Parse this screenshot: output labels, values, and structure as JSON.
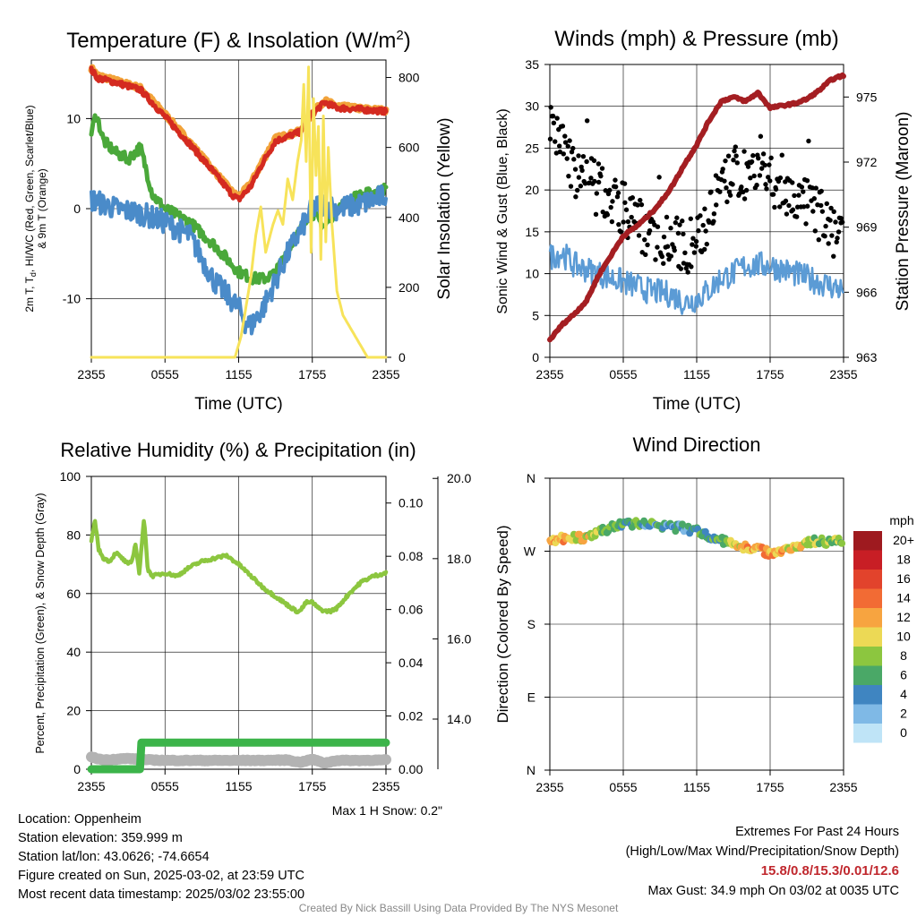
{
  "colors": {
    "temp": "#d42a20",
    "nine_m_temp": "#f2a33a",
    "dewpoint": "#4aa83a",
    "hiwc": "#4a8bc9",
    "insolation": "#f7e35a",
    "rh": "#8cc63f",
    "precip": "#3cb44a",
    "snow": "#b3b3b3",
    "wind": "#5b9bd5",
    "gust": "#000000",
    "pressure": "#a41e22"
  },
  "chart_data": [
    {
      "id": "temperature",
      "type": "line",
      "title": "Temperature (F) & Insolation (W/m",
      "title_sup": "2",
      "title_end": ")",
      "xlabel": "Time (UTC)",
      "ylabel_line1": "2m T, T",
      "ylabel_sub": "d",
      "ylabel_line1_end": ", HI/WC (Red, Green, Scarlet/Blue)",
      "ylabel_line2": "& 9m T (Orange)",
      "y2label": "Solar Insolation (Yellow)",
      "xticks": [
        "2355",
        "0555",
        "1155",
        "1755",
        "2355"
      ],
      "x_hours": [
        0,
        6,
        12,
        18,
        24
      ],
      "ylim": [
        -16.5,
        16.5
      ],
      "yticks": [
        -10,
        0,
        10
      ],
      "y2lim": [
        0,
        850
      ],
      "y2ticks": [
        0,
        200,
        400,
        600,
        800
      ],
      "series": [
        {
          "name": "9m Temperature",
          "axis": "left",
          "color_key": "nine_m_temp",
          "width": 7,
          "noise": 0.25,
          "x": [
            0,
            0.5,
            2,
            4,
            6,
            8,
            10,
            11.5,
            12,
            13,
            14,
            15,
            16,
            17,
            18,
            19,
            20,
            22,
            24
          ],
          "values": [
            15.6,
            14.8,
            14.2,
            13.4,
            10.5,
            7.4,
            4.2,
            1.8,
            1.3,
            2.8,
            5.4,
            7.8,
            8.2,
            8.6,
            10.6,
            12.0,
            11.4,
            11.1,
            10.9
          ]
        },
        {
          "name": "2m Temperature",
          "axis": "left",
          "color_key": "temp",
          "width": 5,
          "noise": 0.3,
          "x": [
            0,
            0.5,
            2,
            4,
            6,
            8,
            10,
            11.5,
            12,
            13,
            14,
            15,
            16,
            17,
            18,
            19,
            20,
            22,
            24
          ],
          "values": [
            15.4,
            14.5,
            14.0,
            13.2,
            10.2,
            7.2,
            4.0,
            1.5,
            1.0,
            2.5,
            5.2,
            7.5,
            8.0,
            8.5,
            10.5,
            11.8,
            11.2,
            11.0,
            10.8
          ]
        },
        {
          "name": "Dewpoint",
          "axis": "left",
          "color_key": "dewpoint",
          "width": 5,
          "noise": 0.6,
          "x": [
            0,
            0.4,
            1,
            2,
            3,
            4,
            5,
            6,
            8,
            10,
            12,
            13,
            14,
            15,
            16,
            17,
            17.5,
            18,
            19,
            20,
            21,
            22,
            23,
            24
          ],
          "values": [
            8.5,
            10.5,
            7.5,
            6.2,
            5.5,
            6.8,
            1.5,
            0.0,
            -1.5,
            -4.0,
            -7.0,
            -7.7,
            -7.8,
            -7.2,
            -4.5,
            -2.5,
            -1.0,
            -0.5,
            -2.0,
            0.0,
            1.0,
            1.5,
            1.8,
            2.2
          ]
        },
        {
          "name": "Wind Chill",
          "axis": "left",
          "color_key": "hiwc",
          "width": 4,
          "noise": 1.3,
          "x": [
            0,
            2,
            4,
            6,
            8,
            9,
            10,
            11,
            12,
            12.5,
            13,
            13.5,
            14,
            15,
            16,
            17,
            18,
            19,
            20,
            22,
            24
          ],
          "values": [
            1.0,
            0.0,
            -0.5,
            -1.5,
            -3.0,
            -5.5,
            -8.0,
            -9.5,
            -11.0,
            -12.5,
            -13.0,
            -12.0,
            -11.0,
            -8.0,
            -5.0,
            -2.5,
            0.0,
            0.5,
            0.0,
            0.5,
            1.5
          ]
        },
        {
          "name": "Solar Insolation",
          "axis": "right",
          "color_key": "insolation",
          "width": 3,
          "noise": 0,
          "x": [
            0,
            11.7,
            12.2,
            13,
            13.4,
            13.8,
            14.2,
            14.8,
            15.2,
            15.6,
            16,
            16.4,
            16.8,
            17.1,
            17.3,
            17.5,
            17.7,
            17.9,
            18.1,
            18.3,
            18.5,
            18.7,
            18.9,
            19.1,
            19.3,
            19.6,
            20,
            20.5,
            21,
            21.5,
            22,
            22.5,
            23,
            24
          ],
          "values": [
            0,
            0,
            60,
            230,
            350,
            430,
            300,
            380,
            420,
            380,
            510,
            450,
            560,
            620,
            780,
            560,
            830,
            300,
            740,
            520,
            660,
            280,
            690,
            330,
            600,
            380,
            190,
            120,
            90,
            60,
            30,
            0,
            0,
            0
          ]
        }
      ]
    },
    {
      "id": "winds",
      "type": "scatter",
      "title": "Winds (mph) & Pressure (mb)",
      "xlabel": "Time (UTC)",
      "ylabel": "Sonic Wind & Gust (Blue, Black)",
      "y2label": "Station Pressure (Maroon)",
      "xticks": [
        "2355",
        "0555",
        "1155",
        "1755",
        "2355"
      ],
      "x_hours": [
        0,
        6,
        12,
        18,
        24
      ],
      "ylim": [
        0,
        35
      ],
      "yticks": [
        0,
        5,
        10,
        15,
        20,
        25,
        30,
        35
      ],
      "y2lim": [
        963,
        976.5
      ],
      "y2ticks": [
        963,
        966,
        969,
        972,
        975
      ],
      "gust_trend": {
        "x": [
          0,
          1,
          2,
          4,
          6,
          8,
          10,
          11,
          12,
          13,
          14,
          15,
          16,
          18,
          20,
          22,
          24
        ],
        "values": [
          27,
          26,
          22,
          20,
          18,
          15,
          14,
          13,
          14,
          17,
          20,
          22,
          22,
          21,
          19,
          17,
          14
        ],
        "spread": 3.2
      },
      "wind": {
        "x": [
          0,
          1,
          2,
          4,
          6,
          8,
          10,
          11,
          12,
          13,
          14,
          15,
          16,
          18,
          20,
          22,
          24
        ],
        "values": [
          12,
          12.5,
          11,
          10,
          9,
          8,
          7.5,
          6.5,
          7,
          8,
          9.5,
          10,
          11,
          11,
          10,
          9,
          8
        ],
        "noise": 1.6
      },
      "pressure": {
        "x": [
          0,
          1,
          2,
          3,
          4,
          5,
          6,
          7,
          8,
          9,
          10,
          11,
          12,
          13,
          14,
          15,
          16,
          17,
          18,
          19,
          20,
          21,
          22,
          23,
          24
        ],
        "values": [
          963.8,
          964.5,
          965.0,
          965.6,
          966.8,
          967.7,
          968.6,
          969.0,
          969.5,
          970.1,
          970.9,
          971.9,
          972.8,
          973.9,
          974.8,
          975.0,
          974.8,
          975.2,
          974.5,
          974.6,
          974.7,
          974.9,
          975.3,
          975.8,
          976.0
        ]
      }
    },
    {
      "id": "humidity",
      "type": "line",
      "title": "Relative Humidity (%) & Precipitation (in)",
      "ylabel": "Percent, Precipitation (Green), & Snow Depth (Gray)",
      "xticks": [
        "2355",
        "0555",
        "1155",
        "1755",
        "2355"
      ],
      "x_hours": [
        0,
        6,
        12,
        18,
        24
      ],
      "ylim": [
        0,
        100
      ],
      "yticks": [
        0,
        20,
        40,
        60,
        80,
        100
      ],
      "y2lim": [
        0,
        0.11
      ],
      "y2ticks": [
        "0.00",
        "0.02",
        "0.04",
        "0.06",
        "0.08",
        "0.10"
      ],
      "y3lim": [
        12.75,
        20.05
      ],
      "y3ticks": [
        "14.0",
        "16.0",
        "18.0",
        "20.0"
      ],
      "rh": {
        "x": [
          0,
          0.3,
          0.6,
          1,
          1.5,
          2,
          2.5,
          3,
          3.3,
          3.6,
          3.9,
          4.1,
          4.3,
          4.6,
          5,
          6,
          7,
          8,
          9,
          10,
          11,
          12,
          13,
          14,
          15,
          16,
          16.7,
          17,
          17.5,
          18,
          18.5,
          19,
          19.5,
          20,
          21,
          22,
          23,
          24
        ],
        "values": [
          78,
          85,
          75,
          72,
          71,
          74,
          72,
          70,
          71,
          77,
          67,
          76,
          86,
          68,
          66,
          67,
          66,
          69,
          71,
          72,
          73,
          70,
          66,
          62,
          59,
          56,
          54,
          54,
          57,
          57,
          55,
          54,
          54,
          55,
          60,
          64,
          66,
          67
        ]
      },
      "precip": {
        "x": [
          0,
          4,
          4.01,
          24
        ],
        "values": [
          0,
          0,
          0.01,
          0.01
        ]
      },
      "snow": {
        "x": [
          0,
          1,
          2,
          3,
          4,
          6,
          8,
          10,
          12,
          14,
          16,
          17,
          18,
          19,
          20,
          22,
          24
        ],
        "values": [
          13.05,
          12.98,
          13.0,
          13.02,
          12.99,
          12.97,
          12.97,
          12.97,
          12.97,
          12.97,
          12.98,
          12.92,
          13.0,
          12.9,
          12.97,
          12.97,
          12.98
        ]
      }
    },
    {
      "id": "direction",
      "type": "scatter",
      "title": "Wind Direction",
      "ylabel": "Direction (Colored By Speed)",
      "xticks": [
        "2355",
        "0555",
        "1155",
        "1755",
        "2355"
      ],
      "x_hours": [
        0,
        6,
        12,
        18,
        24
      ],
      "ylim": [
        0,
        360
      ],
      "yticks": [
        "N",
        "E",
        "S",
        "W",
        "N"
      ],
      "ytick_values": [
        0,
        90,
        180,
        270,
        360
      ],
      "trend": {
        "x": [
          0,
          2,
          3,
          4,
          5,
          6,
          7,
          8,
          9,
          10,
          11,
          12,
          13,
          14,
          15,
          16,
          17,
          18,
          19,
          20,
          21,
          22,
          23,
          24
        ],
        "values": [
          283,
          288,
          285,
          292,
          300,
          303,
          304,
          303,
          302,
          300,
          298,
          295,
          289,
          283,
          279,
          275,
          272,
          268,
          270,
          276,
          282,
          282,
          282,
          283
        ],
        "spread": 5
      },
      "speed_trend": {
        "x": [
          0,
          2,
          4,
          6,
          8,
          10,
          12,
          14,
          16,
          18,
          20,
          22,
          24
        ],
        "values": [
          13,
          12,
          9,
          7,
          6,
          5,
          6,
          8,
          12,
          14,
          11,
          9,
          8
        ],
        "spread": 2.5
      },
      "colorbar": {
        "title": "mph",
        "labels": [
          "20+",
          "18",
          "16",
          "14",
          "12",
          "10",
          "8",
          "6",
          "4",
          "2",
          "0"
        ],
        "colors": [
          "#9e1a1f",
          "#c81e25",
          "#e2432c",
          "#f26b34",
          "#f7a440",
          "#ecd955",
          "#8cc63f",
          "#4aa867",
          "#3f85c1",
          "#7fb9e6",
          "#bfe4f7"
        ]
      }
    }
  ],
  "footer": {
    "location": "Location: Oppenheim",
    "elevation": "Station elevation: 359.999 m",
    "latlon": "Station lat/lon: 43.0626; -74.6654",
    "created": "Figure created on Sun, 2025-03-02, at 23:59 UTC",
    "recent": "Most recent data timestamp: 2025/03/02 23:55:00",
    "snow_max": "Max 1 H Snow: 0.2\"",
    "extremes_title": "Extremes For Past 24 Hours",
    "extremes_sub": "(High/Low/Max Wind/Precipitation/Snow Depth)",
    "extremes_values": "15.8/0.8/15.3/0.01/12.6",
    "max_gust": "Max Gust: 34.9 mph On 03/02 at 0035 UTC",
    "credit": "Created By Nick Bassill Using Data Provided By The NYS Mesonet"
  }
}
